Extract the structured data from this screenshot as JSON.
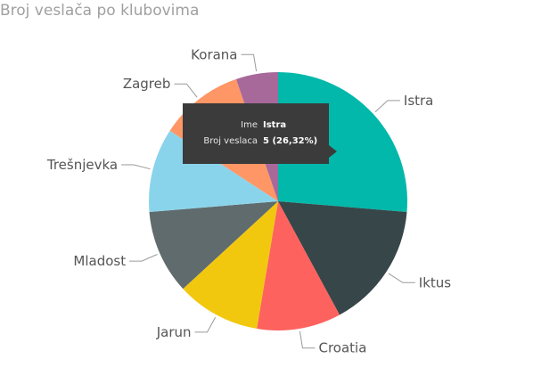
{
  "chart_data": {
    "type": "pie",
    "title": "Broj veslača po klubovima",
    "categories": [
      "Istra",
      "Iktus",
      "Croatia",
      "Jarun",
      "Mladost",
      "Trešnjevka",
      "Zagreb",
      "Korana"
    ],
    "values": [
      5,
      3,
      2,
      2,
      2,
      2,
      2,
      1
    ],
    "colors": [
      "#01b8aa",
      "#374649",
      "#fd625e",
      "#f2c80f",
      "#5f6b6d",
      "#8ad4eb",
      "#fe9666",
      "#a66999"
    ],
    "tooltip": {
      "rows": [
        {
          "key": "Ime",
          "value": "Istra"
        },
        {
          "key": "Broj veslaca",
          "value": "5 (26,32%)"
        }
      ]
    }
  }
}
